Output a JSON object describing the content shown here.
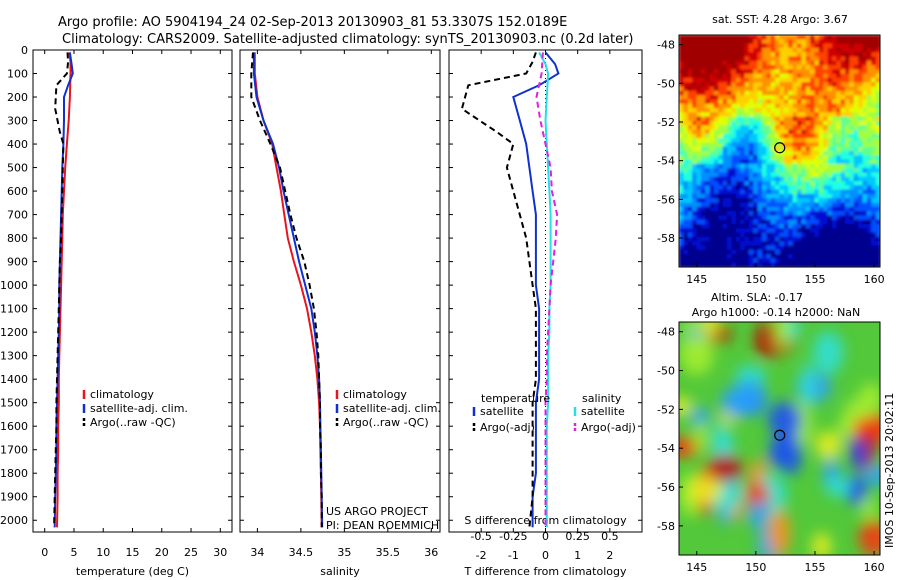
{
  "header": {
    "line1": "Argo profile: AO 5904194_24 02-Sep-2013 20130903_81 53.3307S 152.0189E",
    "line2": "Climatology: CARS2009. Satellite-adjusted climatology: synTS_20130903.nc (0.2d later)"
  },
  "colors": {
    "climatology": "#e8141e",
    "satellite": "#1030d0",
    "argo": "#000000",
    "satellite_salinity": "#22e0e8",
    "argo_salinity_adj": "#e020e0"
  },
  "chart_data": [
    {
      "type": "line",
      "id": "temperature",
      "xlabel": "temperature (deg C)",
      "ylabel": "",
      "xlim": [
        -2,
        32
      ],
      "ylim": [
        2050,
        0
      ],
      "xticks": [
        0,
        5,
        10,
        15,
        20,
        25,
        30
      ],
      "yticks": [
        0,
        100,
        200,
        300,
        400,
        500,
        600,
        700,
        800,
        900,
        1000,
        1100,
        1200,
        1300,
        1400,
        1500,
        1600,
        1700,
        1800,
        1900,
        2000
      ],
      "legend": [
        "climatology",
        "satellite-adj. clim.",
        "Argo(..raw -QC)"
      ],
      "series": [
        {
          "name": "climatology",
          "style": "solid",
          "color": "#e8141e",
          "points": [
            [
              4.2,
              10
            ],
            [
              4.4,
              50
            ],
            [
              4.4,
              100
            ],
            [
              4.3,
              200
            ],
            [
              4.1,
              300
            ],
            [
              3.8,
              400
            ],
            [
              3.5,
              500
            ],
            [
              3.3,
              600
            ],
            [
              3.1,
              700
            ],
            [
              3.0,
              800
            ],
            [
              2.9,
              900
            ],
            [
              2.8,
              1000
            ],
            [
              2.7,
              1100
            ],
            [
              2.6,
              1200
            ],
            [
              2.5,
              1300
            ],
            [
              2.4,
              1400
            ],
            [
              2.4,
              1500
            ],
            [
              2.3,
              1600
            ],
            [
              2.3,
              1700
            ],
            [
              2.2,
              1800
            ],
            [
              2.2,
              1900
            ],
            [
              2.1,
              2030
            ]
          ]
        },
        {
          "name": "satellite-adj. clim.",
          "style": "solid",
          "color": "#1030d0",
          "points": [
            [
              4.3,
              10
            ],
            [
              4.6,
              60
            ],
            [
              4.8,
              100
            ],
            [
              4.0,
              150
            ],
            [
              3.3,
              200
            ],
            [
              3.3,
              300
            ],
            [
              3.2,
              400
            ],
            [
              3.0,
              500
            ],
            [
              2.9,
              600
            ],
            [
              2.8,
              700
            ],
            [
              2.7,
              800
            ],
            [
              2.6,
              900
            ],
            [
              2.5,
              1000
            ],
            [
              2.5,
              1100
            ],
            [
              2.4,
              1200
            ],
            [
              2.3,
              1300
            ],
            [
              2.2,
              1400
            ],
            [
              2.1,
              1500
            ],
            [
              2.0,
              1600
            ],
            [
              2.0,
              1700
            ],
            [
              1.9,
              1800
            ],
            [
              1.8,
              1900
            ],
            [
              1.7,
              2030
            ]
          ]
        },
        {
          "name": "Argo(..raw -QC)",
          "style": "dashed",
          "color": "#000000",
          "points": [
            [
              3.9,
              10
            ],
            [
              4.0,
              50
            ],
            [
              3.8,
              100
            ],
            [
              2.0,
              150
            ],
            [
              1.8,
              250
            ],
            [
              2.6,
              350
            ],
            [
              3.2,
              400
            ],
            [
              3.1,
              500
            ],
            [
              3.0,
              600
            ],
            [
              2.9,
              700
            ],
            [
              2.8,
              800
            ],
            [
              2.6,
              900
            ],
            [
              2.5,
              1000
            ],
            [
              2.4,
              1100
            ],
            [
              2.3,
              1200
            ],
            [
              2.2,
              1300
            ],
            [
              2.1,
              1400
            ],
            [
              2.0,
              1500
            ],
            [
              2.0,
              1600
            ],
            [
              1.9,
              1700
            ],
            [
              1.8,
              1800
            ],
            [
              1.7,
              1900
            ],
            [
              1.6,
              2030
            ]
          ]
        }
      ]
    },
    {
      "type": "line",
      "id": "salinity",
      "xlabel": "salinity",
      "ylabel": "",
      "xlim": [
        33.8,
        36.1
      ],
      "ylim": [
        2050,
        0
      ],
      "xticks": [
        34,
        34.5,
        35,
        35.5,
        36
      ],
      "legend": [
        "climatology",
        "satellite-adj. clim.",
        "Argo(..raw -QC)"
      ],
      "credit": [
        "US ARGO PROJECT",
        "PI: DEAN ROEMMICH"
      ],
      "series": [
        {
          "name": "climatology",
          "style": "solid",
          "color": "#e8141e",
          "points": [
            [
              33.97,
              10
            ],
            [
              33.97,
              100
            ],
            [
              34.0,
              200
            ],
            [
              34.07,
              300
            ],
            [
              34.17,
              400
            ],
            [
              34.22,
              500
            ],
            [
              34.27,
              600
            ],
            [
              34.31,
              700
            ],
            [
              34.35,
              800
            ],
            [
              34.42,
              900
            ],
            [
              34.5,
              1000
            ],
            [
              34.57,
              1100
            ],
            [
              34.62,
              1200
            ],
            [
              34.66,
              1300
            ],
            [
              34.69,
              1400
            ],
            [
              34.71,
              1500
            ],
            [
              34.72,
              1600
            ],
            [
              34.725,
              1700
            ],
            [
              34.73,
              1800
            ],
            [
              34.735,
              1900
            ],
            [
              34.74,
              2030
            ]
          ]
        },
        {
          "name": "satellite-adj. clim.",
          "style": "solid",
          "color": "#1030d0",
          "points": [
            [
              33.96,
              10
            ],
            [
              33.96,
              100
            ],
            [
              33.99,
              200
            ],
            [
              34.07,
              300
            ],
            [
              34.18,
              400
            ],
            [
              34.25,
              500
            ],
            [
              34.3,
              600
            ],
            [
              34.36,
              700
            ],
            [
              34.42,
              800
            ],
            [
              34.48,
              900
            ],
            [
              34.55,
              1000
            ],
            [
              34.62,
              1100
            ],
            [
              34.66,
              1200
            ],
            [
              34.69,
              1300
            ],
            [
              34.71,
              1400
            ],
            [
              34.72,
              1500
            ],
            [
              34.725,
              1600
            ],
            [
              34.73,
              1700
            ],
            [
              34.735,
              1800
            ],
            [
              34.74,
              1900
            ],
            [
              34.745,
              2030
            ]
          ]
        },
        {
          "name": "Argo(..raw -QC)",
          "style": "dashed",
          "color": "#000000",
          "points": [
            [
              33.95,
              10
            ],
            [
              33.93,
              100
            ],
            [
              33.93,
              200
            ],
            [
              34.03,
              300
            ],
            [
              34.15,
              400
            ],
            [
              34.26,
              500
            ],
            [
              34.32,
              600
            ],
            [
              34.38,
              700
            ],
            [
              34.45,
              800
            ],
            [
              34.54,
              900
            ],
            [
              34.6,
              1000
            ],
            [
              34.65,
              1100
            ],
            [
              34.68,
              1200
            ],
            [
              34.7,
              1300
            ],
            [
              34.71,
              1400
            ],
            [
              34.72,
              1500
            ],
            [
              34.72,
              1600
            ],
            [
              34.73,
              1700
            ],
            [
              34.73,
              1800
            ],
            [
              34.74,
              1900
            ],
            [
              34.74,
              2030
            ]
          ]
        }
      ]
    },
    {
      "type": "line",
      "id": "difference",
      "xlabel": "T difference from climatology",
      "xlabel_top": "S difference from climatology",
      "xlim": [
        -3,
        3
      ],
      "ylim": [
        2050,
        0
      ],
      "xticks": [
        "-2",
        "-1",
        "0",
        "1",
        "2"
      ],
      "xticks_values": [
        -2,
        -1,
        0,
        1,
        2
      ],
      "xticks_top": [
        "-0.5",
        "-0.25",
        "0",
        "0.25",
        "0.5"
      ],
      "xticks_top_values": [
        -0.5,
        -0.25,
        0,
        0.25,
        0.5
      ],
      "s_scale": 4,
      "legend": {
        "temperature_title": "temperature",
        "salinity_title": "salinity",
        "temperature": [
          "satellite",
          "Argo(-adj)"
        ],
        "salinity": [
          "satellite",
          "Argo(-adj)"
        ]
      },
      "series": [
        {
          "name": "T satellite",
          "style": "solid",
          "color": "#1030d0",
          "points": [
            [
              0.0,
              10
            ],
            [
              0.3,
              60
            ],
            [
              0.4,
              100
            ],
            [
              -0.2,
              150
            ],
            [
              -1.0,
              200
            ],
            [
              -0.8,
              300
            ],
            [
              -0.6,
              400
            ],
            [
              -0.5,
              500
            ],
            [
              -0.4,
              600
            ],
            [
              -0.3,
              700
            ],
            [
              -0.3,
              800
            ],
            [
              -0.3,
              900
            ],
            [
              -0.3,
              1000
            ],
            [
              -0.2,
              1100
            ],
            [
              -0.2,
              1200
            ],
            [
              -0.2,
              1300
            ],
            [
              -0.2,
              1400
            ],
            [
              -0.3,
              1500
            ],
            [
              -0.3,
              1600
            ],
            [
              -0.3,
              1700
            ],
            [
              -0.3,
              1800
            ],
            [
              -0.4,
              1900
            ],
            [
              -0.4,
              2030
            ]
          ]
        },
        {
          "name": "T Argo(-adj)",
          "style": "dashed",
          "color": "#000000",
          "points": [
            [
              -0.3,
              10
            ],
            [
              -0.4,
              50
            ],
            [
              -0.6,
              100
            ],
            [
              -2.4,
              150
            ],
            [
              -2.6,
              250
            ],
            [
              -1.5,
              350
            ],
            [
              -1.0,
              400
            ],
            [
              -1.2,
              500
            ],
            [
              -1.0,
              600
            ],
            [
              -0.8,
              700
            ],
            [
              -0.6,
              800
            ],
            [
              -0.5,
              900
            ],
            [
              -0.4,
              1000
            ],
            [
              -0.3,
              1100
            ],
            [
              -0.3,
              1200
            ],
            [
              -0.3,
              1300
            ],
            [
              -0.3,
              1400
            ],
            [
              -0.4,
              1500
            ],
            [
              -0.4,
              1600
            ],
            [
              -0.4,
              1700
            ],
            [
              -0.4,
              1800
            ],
            [
              -0.4,
              1900
            ],
            [
              -0.5,
              2030
            ]
          ]
        },
        {
          "name": "S satellite",
          "style": "solid",
          "color": "#22e0e8",
          "points": [
            [
              -0.05,
              10
            ],
            [
              0.0,
              60
            ],
            [
              0.02,
              100
            ],
            [
              0.01,
              200
            ],
            [
              0.0,
              300
            ],
            [
              0.01,
              400
            ],
            [
              0.02,
              500
            ],
            [
              0.03,
              600
            ],
            [
              0.04,
              700
            ],
            [
              0.04,
              800
            ],
            [
              0.04,
              900
            ],
            [
              0.04,
              1000
            ],
            [
              0.03,
              1100
            ],
            [
              0.03,
              1200
            ],
            [
              0.02,
              1300
            ],
            [
              0.02,
              1400
            ],
            [
              0.02,
              1500
            ],
            [
              0.01,
              1600
            ],
            [
              0.01,
              1700
            ],
            [
              0.01,
              1800
            ],
            [
              0.01,
              1900
            ],
            [
              0.01,
              2030
            ]
          ]
        },
        {
          "name": "S Argo(-adj)",
          "style": "dashed",
          "color": "#e020e0",
          "points": [
            [
              -0.02,
              10
            ],
            [
              -0.03,
              100
            ],
            [
              -0.07,
              200
            ],
            [
              -0.04,
              300
            ],
            [
              0.0,
              400
            ],
            [
              0.04,
              500
            ],
            [
              0.05,
              600
            ],
            [
              0.09,
              700
            ],
            [
              0.08,
              800
            ],
            [
              0.06,
              900
            ],
            [
              0.04,
              1000
            ],
            [
              0.03,
              1100
            ],
            [
              0.02,
              1200
            ],
            [
              0.01,
              1300
            ],
            [
              0.01,
              1400
            ],
            [
              0.0,
              1500
            ],
            [
              0.0,
              1600
            ],
            [
              0.0,
              1700
            ],
            [
              0.0,
              1800
            ],
            [
              0.0,
              1900
            ],
            [
              0.0,
              2030
            ]
          ]
        }
      ]
    },
    {
      "type": "heatmap",
      "id": "sst_map",
      "title": "sat. SST: 4.28 Argo: 3.67",
      "xlim": [
        143.5,
        160.5
      ],
      "ylim": [
        -59.5,
        -47.5
      ],
      "xticks": [
        145,
        150,
        155,
        160
      ],
      "yticks": [
        -48,
        -50,
        -52,
        -54,
        -56,
        -58
      ],
      "marker": {
        "lon": 152.0189,
        "lat": -53.3307
      }
    },
    {
      "type": "heatmap",
      "id": "sla_map",
      "title_line1": "Altim. SLA: -0.17",
      "title_line2": "Argo h1000: -0.14 h2000: NaN",
      "side_label": "IMOS 10-Sep-2013 20:02:11",
      "xlim": [
        143.5,
        160.5
      ],
      "ylim": [
        -59.5,
        -47.5
      ],
      "xticks": [
        145,
        150,
        155,
        160
      ],
      "yticks": [
        -48,
        -50,
        -52,
        -54,
        -56,
        -58
      ],
      "marker": {
        "lon": 152.0189,
        "lat": -53.3307
      }
    }
  ]
}
